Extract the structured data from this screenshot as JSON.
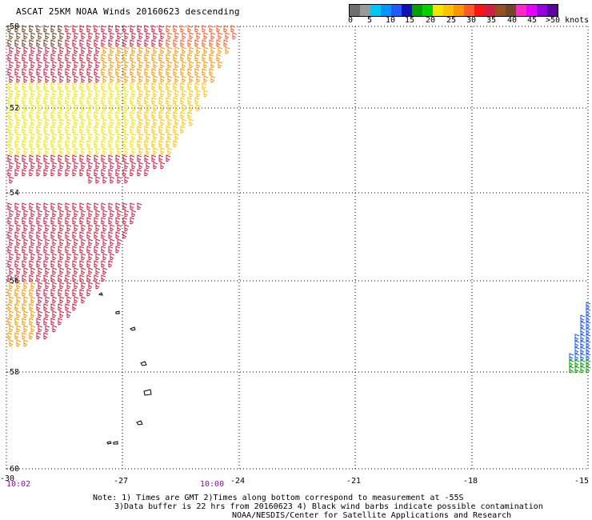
{
  "title": "ASCAT 25KM NOAA Winds 20160623 descending",
  "colorbar": {
    "colors": [
      "#6e6e6e",
      "#9a9a9a",
      "#00c8f5",
      "#0096ff",
      "#1e5aff",
      "#1010b4",
      "#00a000",
      "#00d200",
      "#f0e600",
      "#ffc400",
      "#ff9600",
      "#ff5a28",
      "#ff1414",
      "#d21e46",
      "#96501e",
      "#6e4628",
      "#ff28c8",
      "#e600ff",
      "#9600dc",
      "#5a00a0"
    ],
    "labels": [
      "0",
      "5",
      "10",
      "15",
      "20",
      "25",
      "30",
      "35",
      "40",
      "45",
      ">50 knots"
    ]
  },
  "map": {
    "lat_labels": [
      "-50",
      "-52",
      "-54",
      "-56",
      "-58",
      "-60"
    ],
    "lon_labels": [
      "-30",
      "-27",
      "-24",
      "-21",
      "-18",
      "-15"
    ]
  },
  "times": [
    "10:02",
    "10:00"
  ],
  "notes": [
    "Note: 1) Times are GMT 2)Times along bottom correspond to measurement at -55S",
    "3)Data buffer is 22 hrs from 20160623 4) Black wind barbs indicate possible contamination",
    "NOAA/NESDIS/Center for Satellite Applications and Research"
  ]
}
